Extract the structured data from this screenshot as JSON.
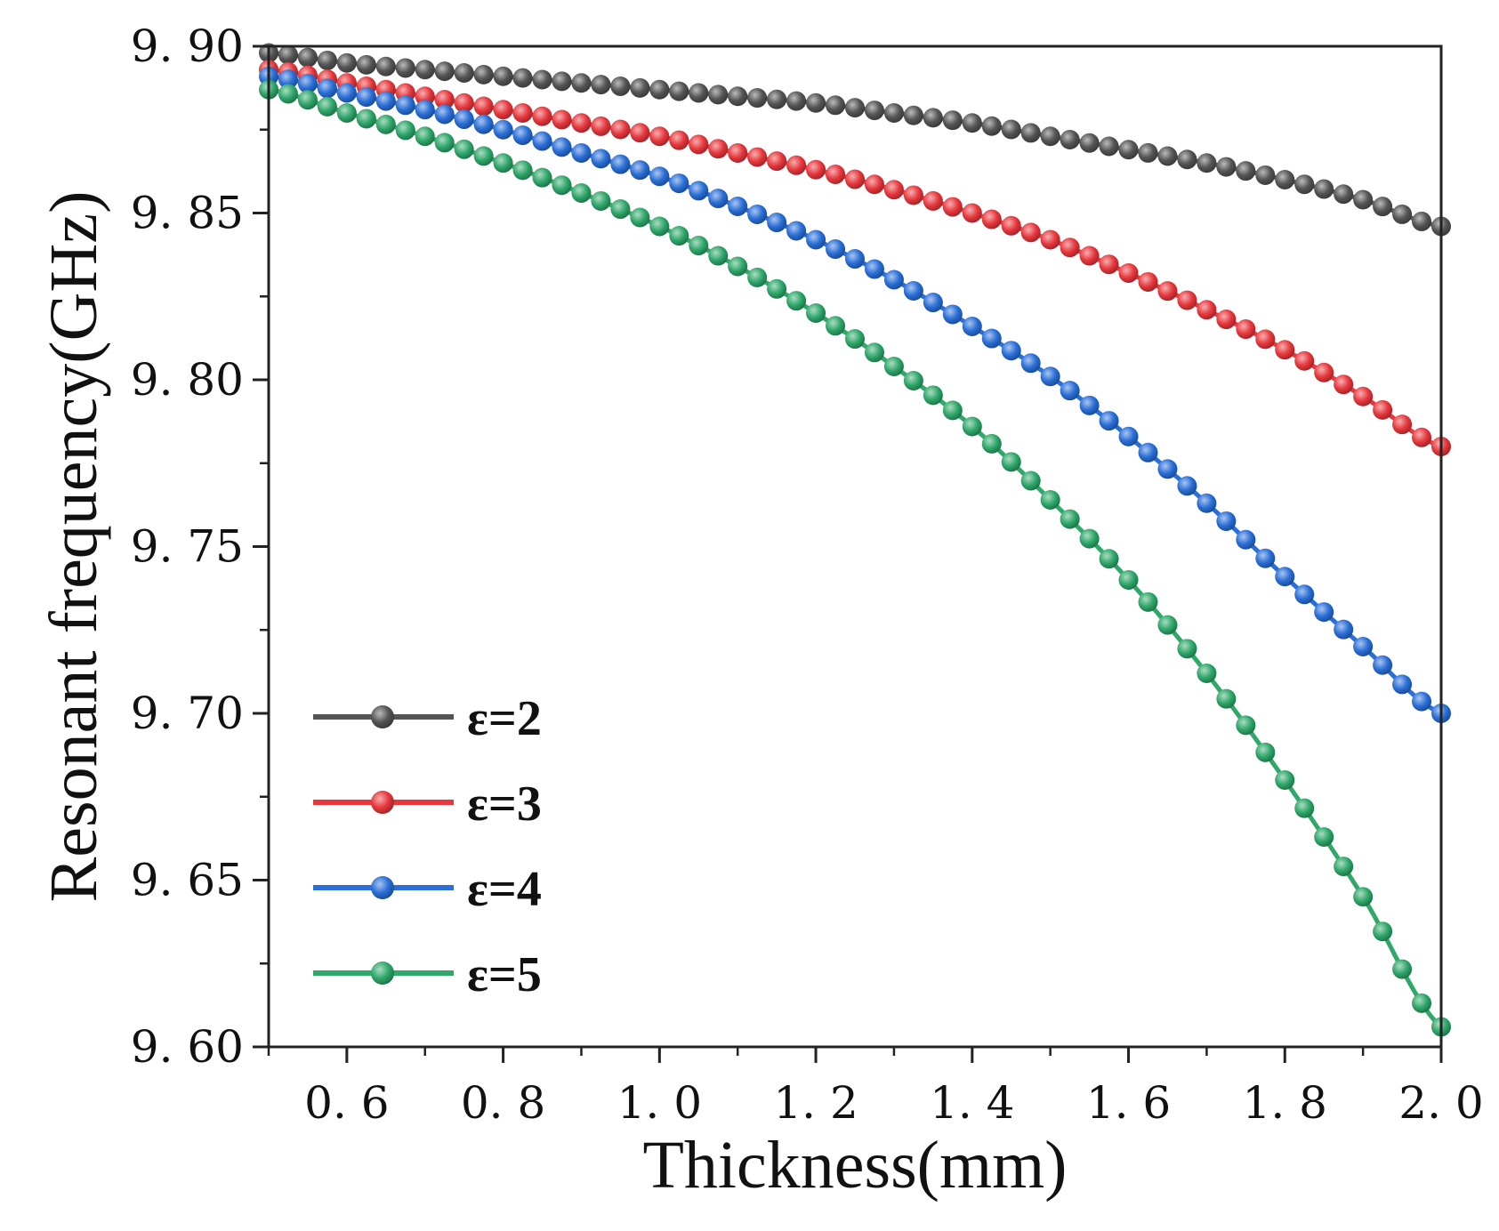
{
  "chart_data": {
    "type": "line",
    "title": "",
    "xlabel": "Thickness(mm)",
    "ylabel": "Resonant frequency(GHz)",
    "xlim": [
      0.5,
      2.0
    ],
    "ylim": [
      9.6,
      9.9
    ],
    "xticks": [
      0.6,
      0.8,
      1.0,
      1.2,
      1.4,
      1.6,
      1.8,
      2.0
    ],
    "xtick_labels": [
      "0. 6",
      "0. 8",
      "1. 0",
      "1. 2",
      "1. 4",
      "1. 6",
      "1. 8",
      "2. 0"
    ],
    "yticks": [
      9.6,
      9.65,
      9.7,
      9.75,
      9.8,
      9.85,
      9.9
    ],
    "ytick_labels": [
      "9. 60",
      "9. 65",
      "9. 70",
      "9. 75",
      "9. 80",
      "9. 85",
      "9. 90"
    ],
    "grid": false,
    "legend_position": "lower-left",
    "x": [
      0.5,
      0.6,
      0.7,
      0.8,
      0.9,
      1.0,
      1.1,
      1.2,
      1.3,
      1.4,
      1.5,
      1.6,
      1.7,
      1.8,
      1.9,
      2.0
    ],
    "series": [
      {
        "name": "ε=2",
        "color": "#555555",
        "values": [
          9.898,
          9.895,
          9.893,
          9.891,
          9.889,
          9.887,
          9.885,
          9.883,
          9.88,
          9.877,
          9.873,
          9.869,
          9.865,
          9.86,
          9.854,
          9.846
        ]
      },
      {
        "name": "ε=3",
        "color": "#e8383d",
        "values": [
          9.893,
          9.889,
          9.885,
          9.881,
          9.877,
          9.873,
          9.868,
          9.863,
          9.857,
          9.85,
          9.842,
          9.832,
          9.821,
          9.809,
          9.795,
          9.78
        ]
      },
      {
        "name": "ε=4",
        "color": "#2a6fd8",
        "values": [
          9.891,
          9.886,
          9.881,
          9.875,
          9.868,
          9.861,
          9.852,
          9.842,
          9.83,
          9.816,
          9.801,
          9.783,
          9.763,
          9.741,
          9.72,
          9.7
        ]
      },
      {
        "name": "ε=5",
        "color": "#2fa86a",
        "values": [
          9.887,
          9.88,
          9.873,
          9.865,
          9.856,
          9.846,
          9.834,
          9.82,
          9.804,
          9.786,
          9.764,
          9.74,
          9.712,
          9.68,
          9.645,
          9.606
        ]
      }
    ]
  }
}
